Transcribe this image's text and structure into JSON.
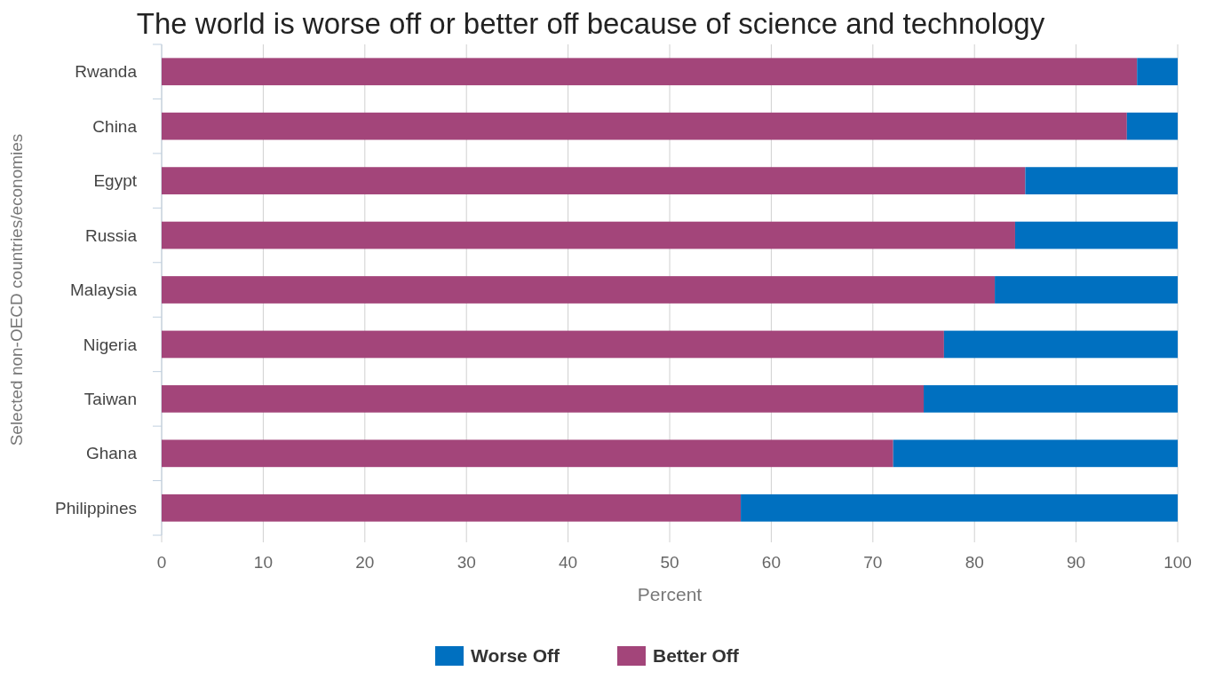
{
  "chart_data": {
    "type": "bar",
    "orientation": "horizontal",
    "stacked": true,
    "title": "The world is worse off or better off because of science and technology",
    "xlabel": "Percent",
    "ylabel": "Selected non-OECD countries/economies",
    "categories": [
      "Rwanda",
      "China",
      "Egypt",
      "Russia",
      "Malaysia",
      "Nigeria",
      "Taiwan",
      "Ghana",
      "Philippines"
    ],
    "series": [
      {
        "name": "Better Off",
        "color": "#a3457a",
        "values": [
          96,
          95,
          85,
          84,
          82,
          77,
          75,
          72,
          57
        ]
      },
      {
        "name": "Worse Off",
        "color": "#0070c0",
        "values": [
          4,
          5,
          15,
          16,
          18,
          23,
          25,
          28,
          43
        ]
      }
    ],
    "xlim": [
      0,
      100
    ],
    "xticks": [
      0,
      10,
      20,
      30,
      40,
      50,
      60,
      70,
      80,
      90,
      100
    ],
    "grid": "x",
    "legend": "bottom"
  }
}
